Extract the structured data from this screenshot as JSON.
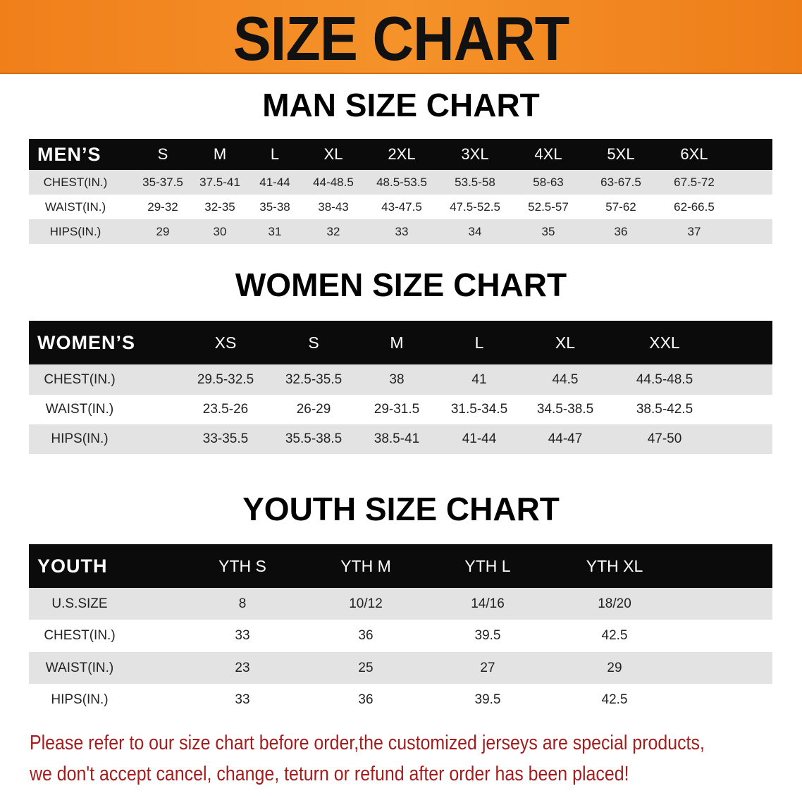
{
  "banner_title": "SIZE CHART",
  "men": {
    "title": "MAN SIZE CHART",
    "header_label": "MEN’S",
    "sizes": [
      "S",
      "M",
      "L",
      "XL",
      "2XL",
      "3XL",
      "4XL",
      "5XL",
      "6XL"
    ],
    "rows": [
      {
        "label": "CHEST(IN.)",
        "values": [
          "35-37.5",
          "37.5-41",
          "41-44",
          "44-48.5",
          "48.5-53.5",
          "53.5-58",
          "58-63",
          "63-67.5",
          "67.5-72"
        ]
      },
      {
        "label": "WAIST(IN.)",
        "values": [
          "29-32",
          "32-35",
          "35-38",
          "38-43",
          "43-47.5",
          "47.5-52.5",
          "52.5-57",
          "57-62",
          "62-66.5"
        ]
      },
      {
        "label": "HIPS(IN.)",
        "values": [
          "29",
          "30",
          "31",
          "32",
          "33",
          "34",
          "35",
          "36",
          "37"
        ]
      }
    ]
  },
  "women": {
    "title": "WOMEN SIZE CHART",
    "header_label": "WOMEN’S",
    "sizes": [
      "XS",
      "S",
      "M",
      "L",
      "XL",
      "XXL"
    ],
    "rows": [
      {
        "label": "CHEST(IN.)",
        "values": [
          "29.5-32.5",
          "32.5-35.5",
          "38",
          "41",
          "44.5",
          "44.5-48.5"
        ]
      },
      {
        "label": "WAIST(IN.)",
        "values": [
          "23.5-26",
          "26-29",
          "29-31.5",
          "31.5-34.5",
          "34.5-38.5",
          "38.5-42.5"
        ]
      },
      {
        "label": "HIPS(IN.)",
        "values": [
          "33-35.5",
          "35.5-38.5",
          "38.5-41",
          "41-44",
          "44-47",
          "47-50"
        ]
      }
    ]
  },
  "youth": {
    "title": "YOUTH SIZE CHART",
    "header_label": "YOUTH",
    "sizes": [
      "YTH S",
      "YTH M",
      "YTH L",
      "YTH XL"
    ],
    "rows": [
      {
        "label": "U.S.SIZE",
        "values": [
          "8",
          "10/12",
          "14/16",
          "18/20"
        ]
      },
      {
        "label": "CHEST(IN.)",
        "values": [
          "33",
          "36",
          "39.5",
          "42.5"
        ]
      },
      {
        "label": "WAIST(IN.)",
        "values": [
          "23",
          "25",
          "27",
          "29"
        ]
      },
      {
        "label": "HIPS(IN.)",
        "values": [
          "33",
          "36",
          "39.5",
          "42.5"
        ]
      }
    ]
  },
  "notice": [
    "Please refer to our size chart before order,the customized jerseys are special products,",
    "we don't accept cancel, change, teturn or refund after order has been placed!"
  ],
  "colors": {
    "banner": "#f5922a",
    "header_bg": "#0b0b0b",
    "row_gray": "#e3e3e3",
    "notice": "#a51c1c"
  }
}
